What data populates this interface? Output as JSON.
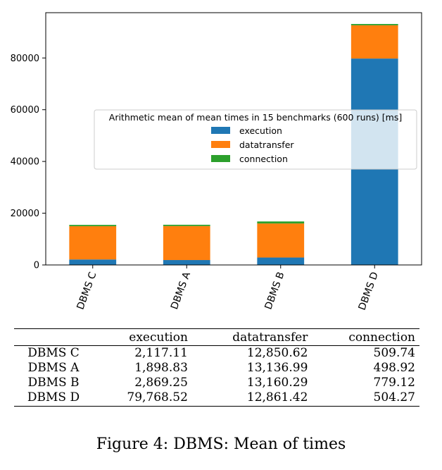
{
  "chart_data": {
    "type": "bar",
    "stacked": true,
    "categories": [
      "DBMS C",
      "DBMS A",
      "DBMS B",
      "DBMS D"
    ],
    "series": [
      {
        "name": "execution",
        "color": "#1f77b4",
        "values": [
          2117.11,
          1898.83,
          2869.25,
          79768.52
        ]
      },
      {
        "name": "datatransfer",
        "color": "#ff7f0e",
        "values": [
          12850.62,
          13136.99,
          13160.29,
          12861.42
        ]
      },
      {
        "name": "connection",
        "color": "#2ca02c",
        "values": [
          509.74,
          498.92,
          779.12,
          504.27
        ]
      }
    ],
    "ylim": [
      0,
      97500
    ],
    "yticks": [
      0,
      20000,
      40000,
      60000,
      80000
    ],
    "legend_title": "Arithmetic mean of mean times in 15 benchmarks (600 runs) [ms]",
    "legend_placement": "center-right",
    "grid": false
  },
  "table": {
    "headers": [
      "",
      "execution",
      "datatransfer",
      "connection"
    ],
    "rows": [
      [
        "DBMS C",
        "2,117.11",
        "12,850.62",
        "509.74"
      ],
      [
        "DBMS A",
        "1,898.83",
        "13,136.99",
        "498.92"
      ],
      [
        "DBMS B",
        "2,869.25",
        "13,160.29",
        "779.12"
      ],
      [
        "DBMS D",
        "79,768.52",
        "12,861.42",
        "504.27"
      ]
    ]
  },
  "caption": "Figure 4: DBMS: Mean of times"
}
